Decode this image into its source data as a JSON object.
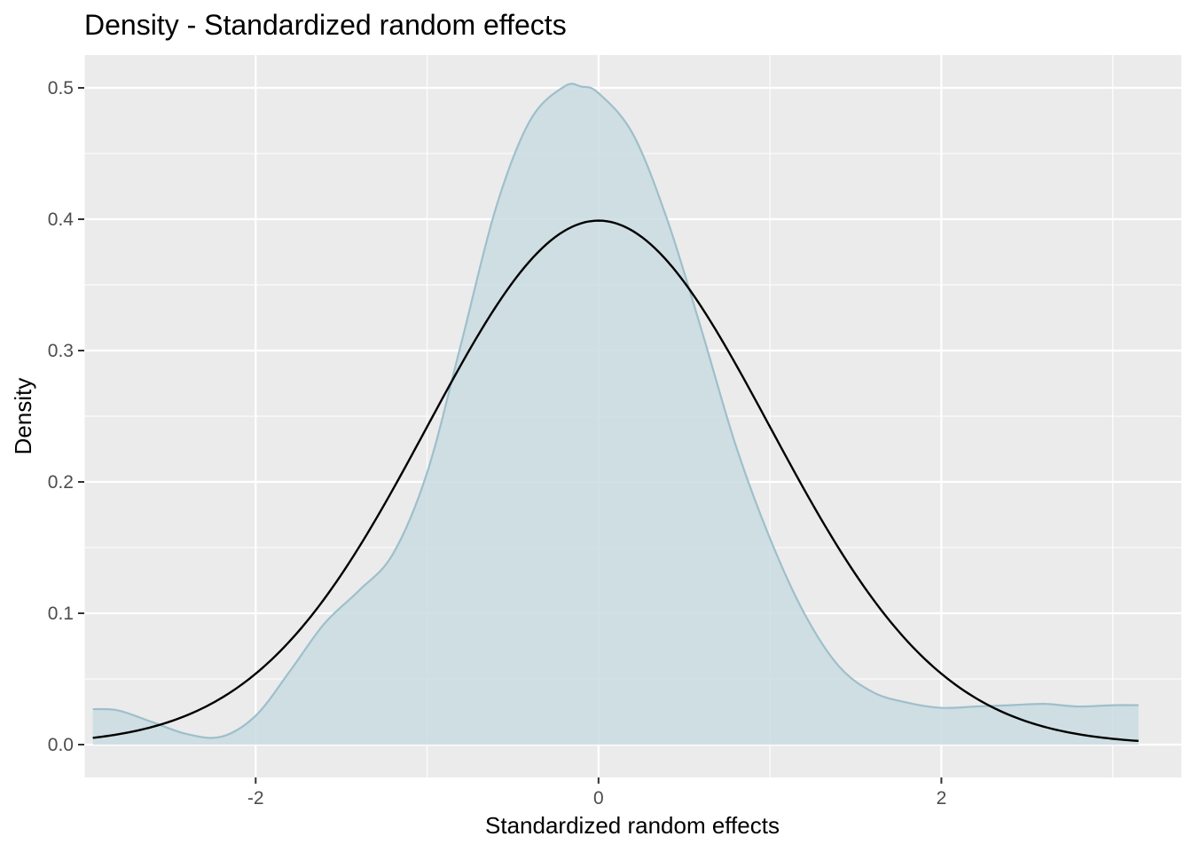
{
  "chart_data": {
    "type": "area",
    "title": "Density - Standardized random effects",
    "xlabel": "Standardized random effects",
    "ylabel": "Density",
    "xlim": [
      -3.0,
      3.4
    ],
    "ylim": [
      -0.025,
      0.525
    ],
    "x_ticks": [
      -2,
      0,
      2
    ],
    "x_tick_labels": [
      "-2",
      "0",
      "2"
    ],
    "y_ticks": [
      0.0,
      0.1,
      0.2,
      0.3,
      0.4,
      0.5
    ],
    "y_tick_labels": [
      "0.0",
      "0.1",
      "0.2",
      "0.3",
      "0.4",
      "0.5"
    ],
    "grid": true,
    "series": [
      {
        "kind": "density-area",
        "fill_color": "#c9dce2",
        "line_color": "#9ebfcb",
        "x": [
          -2.95,
          -2.8,
          -2.6,
          -2.4,
          -2.2,
          -2.0,
          -1.8,
          -1.6,
          -1.4,
          -1.2,
          -1.0,
          -0.8,
          -0.6,
          -0.4,
          -0.2,
          -0.1,
          0.0,
          0.2,
          0.4,
          0.6,
          0.8,
          1.0,
          1.2,
          1.4,
          1.6,
          1.8,
          2.0,
          2.2,
          2.4,
          2.6,
          2.8,
          3.0,
          3.15
        ],
        "y": [
          0.027,
          0.026,
          0.017,
          0.008,
          0.006,
          0.022,
          0.056,
          0.092,
          0.117,
          0.145,
          0.207,
          0.306,
          0.408,
          0.475,
          0.501,
          0.501,
          0.496,
          0.465,
          0.4,
          0.316,
          0.228,
          0.157,
          0.1,
          0.06,
          0.04,
          0.032,
          0.028,
          0.029,
          0.03,
          0.031,
          0.029,
          0.03,
          0.03
        ]
      },
      {
        "kind": "normal-curve",
        "line_color": "#000000",
        "mean": 0,
        "sd": 1,
        "x_range": [
          -2.95,
          3.15
        ]
      }
    ]
  }
}
